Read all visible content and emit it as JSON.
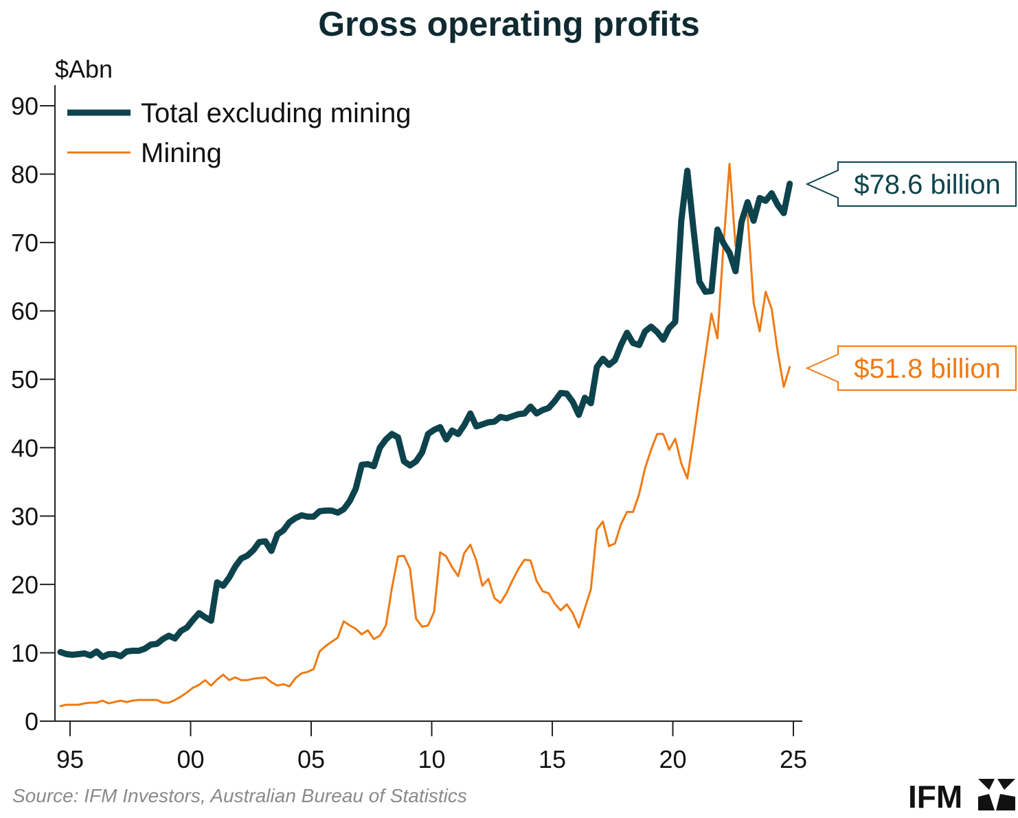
{
  "chart_data": {
    "type": "line",
    "title": "Gross operating profits",
    "ylabel": "$Abn",
    "xlabel": "",
    "xlim": [
      1994.6,
      2025.0
    ],
    "ylim": [
      0,
      90
    ],
    "yticks": [
      0,
      10,
      20,
      30,
      40,
      50,
      60,
      70,
      80,
      90
    ],
    "xticks": [
      {
        "value": 1995,
        "label": "95"
      },
      {
        "value": 2000,
        "label": "00"
      },
      {
        "value": 2005,
        "label": "05"
      },
      {
        "value": 2010,
        "label": "10"
      },
      {
        "value": 2015,
        "label": "15"
      },
      {
        "value": 2020,
        "label": "20"
      },
      {
        "value": 2025,
        "label": "25"
      }
    ],
    "legend_position": "top-left",
    "series": [
      {
        "name": "Total excluding mining",
        "color": "#0d434c",
        "values": [
          [
            1994.6,
            10.1
          ],
          [
            1994.85,
            9.8
          ],
          [
            1995.1,
            9.7
          ],
          [
            1995.35,
            9.8
          ],
          [
            1995.6,
            9.9
          ],
          [
            1995.85,
            9.6
          ],
          [
            1996.1,
            10.2
          ],
          [
            1996.35,
            9.4
          ],
          [
            1996.6,
            9.8
          ],
          [
            1996.85,
            9.8
          ],
          [
            1997.1,
            9.5
          ],
          [
            1997.35,
            10.2
          ],
          [
            1997.6,
            10.3
          ],
          [
            1997.85,
            10.3
          ],
          [
            1998.1,
            10.6
          ],
          [
            1998.35,
            11.2
          ],
          [
            1998.6,
            11.3
          ],
          [
            1998.85,
            12.0
          ],
          [
            1999.1,
            12.5
          ],
          [
            1999.35,
            12.1
          ],
          [
            1999.6,
            13.2
          ],
          [
            1999.85,
            13.7
          ],
          [
            2000.1,
            14.8
          ],
          [
            2000.35,
            15.8
          ],
          [
            2000.6,
            15.2
          ],
          [
            2000.85,
            14.7
          ],
          [
            2001.1,
            20.3
          ],
          [
            2001.35,
            19.8
          ],
          [
            2001.6,
            21.0
          ],
          [
            2001.85,
            22.6
          ],
          [
            2002.1,
            23.8
          ],
          [
            2002.35,
            24.2
          ],
          [
            2002.6,
            25.0
          ],
          [
            2002.85,
            26.2
          ],
          [
            2003.1,
            26.3
          ],
          [
            2003.35,
            24.9
          ],
          [
            2003.6,
            27.3
          ],
          [
            2003.85,
            27.9
          ],
          [
            2004.1,
            29.1
          ],
          [
            2004.35,
            29.7
          ],
          [
            2004.6,
            30.1
          ],
          [
            2004.85,
            29.9
          ],
          [
            2005.1,
            29.9
          ],
          [
            2005.35,
            30.7
          ],
          [
            2005.6,
            30.8
          ],
          [
            2005.85,
            30.8
          ],
          [
            2006.1,
            30.5
          ],
          [
            2006.35,
            31.0
          ],
          [
            2006.6,
            32.2
          ],
          [
            2006.85,
            34.0
          ],
          [
            2007.1,
            37.5
          ],
          [
            2007.35,
            37.6
          ],
          [
            2007.6,
            37.3
          ],
          [
            2007.85,
            40.0
          ],
          [
            2008.1,
            41.2
          ],
          [
            2008.35,
            42.0
          ],
          [
            2008.6,
            41.5
          ],
          [
            2008.85,
            38.0
          ],
          [
            2009.1,
            37.4
          ],
          [
            2009.35,
            38.0
          ],
          [
            2009.6,
            39.3
          ],
          [
            2009.85,
            42.0
          ],
          [
            2010.1,
            42.6
          ],
          [
            2010.35,
            43.0
          ],
          [
            2010.6,
            41.2
          ],
          [
            2010.85,
            42.5
          ],
          [
            2011.1,
            42.0
          ],
          [
            2011.35,
            43.3
          ],
          [
            2011.6,
            45.0
          ],
          [
            2011.85,
            43.1
          ],
          [
            2012.1,
            43.4
          ],
          [
            2012.35,
            43.7
          ],
          [
            2012.6,
            43.8
          ],
          [
            2012.85,
            44.5
          ],
          [
            2013.1,
            44.3
          ],
          [
            2013.35,
            44.6
          ],
          [
            2013.6,
            44.9
          ],
          [
            2013.85,
            45.0
          ],
          [
            2014.1,
            46.0
          ],
          [
            2014.35,
            45.0
          ],
          [
            2014.6,
            45.5
          ],
          [
            2014.85,
            45.8
          ],
          [
            2015.1,
            46.8
          ],
          [
            2015.35,
            48.0
          ],
          [
            2015.6,
            47.9
          ],
          [
            2015.85,
            46.7
          ],
          [
            2016.1,
            44.8
          ],
          [
            2016.35,
            47.3
          ],
          [
            2016.6,
            46.5
          ],
          [
            2016.85,
            51.8
          ],
          [
            2017.1,
            53.0
          ],
          [
            2017.35,
            52.1
          ],
          [
            2017.6,
            52.8
          ],
          [
            2017.85,
            55.0
          ],
          [
            2018.1,
            56.8
          ],
          [
            2018.35,
            55.3
          ],
          [
            2018.6,
            55.0
          ],
          [
            2018.85,
            57.0
          ],
          [
            2019.1,
            57.7
          ],
          [
            2019.35,
            56.9
          ],
          [
            2019.6,
            55.8
          ],
          [
            2019.85,
            57.5
          ],
          [
            2020.1,
            58.4
          ],
          [
            2020.35,
            73.2
          ],
          [
            2020.6,
            80.5
          ],
          [
            2020.85,
            72.2
          ],
          [
            2021.1,
            64.3
          ],
          [
            2021.35,
            62.8
          ],
          [
            2021.6,
            62.9
          ],
          [
            2021.85,
            71.9
          ],
          [
            2022.1,
            69.9
          ],
          [
            2022.35,
            68.5
          ],
          [
            2022.6,
            65.8
          ],
          [
            2022.85,
            73.0
          ],
          [
            2023.1,
            75.9
          ],
          [
            2023.35,
            73.2
          ],
          [
            2023.6,
            76.5
          ],
          [
            2023.85,
            76.1
          ],
          [
            2024.1,
            77.2
          ],
          [
            2024.35,
            75.5
          ],
          [
            2024.6,
            74.3
          ],
          [
            2024.85,
            78.6
          ]
        ]
      },
      {
        "name": "Mining",
        "color": "#ef7a14",
        "values": [
          [
            1994.6,
            2.2
          ],
          [
            1994.85,
            2.4
          ],
          [
            1995.1,
            2.4
          ],
          [
            1995.35,
            2.4
          ],
          [
            1995.6,
            2.6
          ],
          [
            1995.85,
            2.7
          ],
          [
            1996.1,
            2.7
          ],
          [
            1996.35,
            3.0
          ],
          [
            1996.6,
            2.6
          ],
          [
            1996.85,
            2.8
          ],
          [
            1997.1,
            3.0
          ],
          [
            1997.35,
            2.8
          ],
          [
            1997.6,
            3.0
          ],
          [
            1997.85,
            3.1
          ],
          [
            1998.1,
            3.1
          ],
          [
            1998.35,
            3.1
          ],
          [
            1998.6,
            3.1
          ],
          [
            1998.85,
            2.7
          ],
          [
            1999.1,
            2.7
          ],
          [
            1999.35,
            3.1
          ],
          [
            1999.6,
            3.6
          ],
          [
            1999.85,
            4.2
          ],
          [
            2000.1,
            4.9
          ],
          [
            2000.35,
            5.3
          ],
          [
            2000.6,
            6.0
          ],
          [
            2000.85,
            5.2
          ],
          [
            2001.1,
            6.1
          ],
          [
            2001.35,
            6.8
          ],
          [
            2001.6,
            6.0
          ],
          [
            2001.85,
            6.4
          ],
          [
            2002.1,
            6.0
          ],
          [
            2002.35,
            6.0
          ],
          [
            2002.6,
            6.2
          ],
          [
            2002.85,
            6.3
          ],
          [
            2003.1,
            6.4
          ],
          [
            2003.35,
            5.7
          ],
          [
            2003.6,
            5.2
          ],
          [
            2003.85,
            5.4
          ],
          [
            2004.1,
            5.1
          ],
          [
            2004.35,
            6.3
          ],
          [
            2004.6,
            7.0
          ],
          [
            2004.85,
            7.2
          ],
          [
            2005.1,
            7.6
          ],
          [
            2005.35,
            10.2
          ],
          [
            2005.6,
            11.0
          ],
          [
            2005.85,
            11.6
          ],
          [
            2006.1,
            12.2
          ],
          [
            2006.35,
            14.6
          ],
          [
            2006.6,
            14.0
          ],
          [
            2006.85,
            13.5
          ],
          [
            2007.1,
            12.7
          ],
          [
            2007.35,
            13.3
          ],
          [
            2007.6,
            12.0
          ],
          [
            2007.85,
            12.5
          ],
          [
            2008.1,
            14.0
          ],
          [
            2008.35,
            19.5
          ],
          [
            2008.6,
            24.1
          ],
          [
            2008.85,
            24.2
          ],
          [
            2009.1,
            22.3
          ],
          [
            2009.35,
            15.0
          ],
          [
            2009.6,
            13.8
          ],
          [
            2009.85,
            14.0
          ],
          [
            2010.1,
            16.0
          ],
          [
            2010.35,
            24.7
          ],
          [
            2010.6,
            24.1
          ],
          [
            2010.85,
            22.5
          ],
          [
            2011.1,
            21.2
          ],
          [
            2011.35,
            24.6
          ],
          [
            2011.6,
            25.8
          ],
          [
            2011.85,
            23.5
          ],
          [
            2012.1,
            19.8
          ],
          [
            2012.35,
            20.8
          ],
          [
            2012.6,
            18.0
          ],
          [
            2012.85,
            17.3
          ],
          [
            2013.1,
            18.7
          ],
          [
            2013.35,
            20.6
          ],
          [
            2013.6,
            22.3
          ],
          [
            2013.85,
            23.6
          ],
          [
            2014.1,
            23.5
          ],
          [
            2014.35,
            20.5
          ],
          [
            2014.6,
            19.0
          ],
          [
            2014.85,
            18.7
          ],
          [
            2015.1,
            17.2
          ],
          [
            2015.35,
            16.2
          ],
          [
            2015.6,
            17.1
          ],
          [
            2015.85,
            15.8
          ],
          [
            2016.1,
            13.7
          ],
          [
            2016.35,
            16.5
          ],
          [
            2016.6,
            19.3
          ],
          [
            2016.85,
            28.0
          ],
          [
            2017.1,
            29.2
          ],
          [
            2017.35,
            25.6
          ],
          [
            2017.6,
            26.0
          ],
          [
            2017.85,
            28.8
          ],
          [
            2018.1,
            30.6
          ],
          [
            2018.35,
            30.6
          ],
          [
            2018.6,
            33.2
          ],
          [
            2018.85,
            37.0
          ],
          [
            2019.1,
            39.7
          ],
          [
            2019.35,
            42.0
          ],
          [
            2019.6,
            42.0
          ],
          [
            2019.85,
            39.7
          ],
          [
            2020.1,
            41.3
          ],
          [
            2020.35,
            37.7
          ],
          [
            2020.6,
            35.5
          ],
          [
            2020.85,
            41.2
          ],
          [
            2021.1,
            47.5
          ],
          [
            2021.35,
            53.5
          ],
          [
            2021.6,
            59.6
          ],
          [
            2021.85,
            56.0
          ],
          [
            2022.1,
            69.5
          ],
          [
            2022.35,
            81.5
          ],
          [
            2022.6,
            69.5
          ],
          [
            2022.85,
            74.2
          ],
          [
            2023.1,
            74.0
          ],
          [
            2023.35,
            61.2
          ],
          [
            2023.6,
            57.0
          ],
          [
            2023.85,
            62.8
          ],
          [
            2024.1,
            60.3
          ],
          [
            2024.35,
            54.0
          ],
          [
            2024.6,
            48.9
          ],
          [
            2024.85,
            51.8
          ]
        ]
      }
    ],
    "annotations": [
      {
        "text": "$78.6 billion",
        "value": 78.6,
        "series": 0
      },
      {
        "text": "$51.8 billion",
        "value": 51.8,
        "series": 1
      }
    ]
  },
  "source": "Source: IFM Investors, Australian Bureau of Statistics",
  "logo": {
    "text": "IFM",
    "icon": "ifm-logo-icon"
  }
}
